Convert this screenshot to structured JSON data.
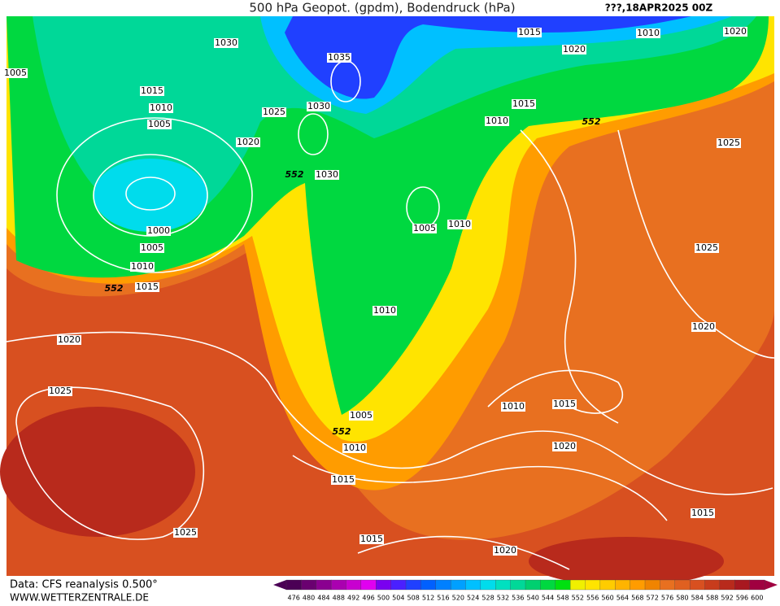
{
  "header": {
    "title": "500 hPa Geopot. (gpdm), Bodendruck (hPa)",
    "date": "???,18APR2025 00Z"
  },
  "footer": {
    "source": "Data: CFS reanalysis 0.500°",
    "site": "WWW.WETTERZENTRALE.DE"
  },
  "colorbar": {
    "values": [
      476,
      480,
      484,
      488,
      492,
      496,
      500,
      504,
      508,
      512,
      516,
      520,
      524,
      528,
      532,
      536,
      540,
      544,
      548,
      552,
      556,
      560,
      564,
      568,
      572,
      576,
      580,
      584,
      588,
      592,
      596,
      600
    ],
    "colors": [
      "#4b0055",
      "#6a0070",
      "#8a0090",
      "#aa00b0",
      "#c800d0",
      "#e000f0",
      "#7a00f0",
      "#4a20ff",
      "#2040ff",
      "#0060ff",
      "#0080ff",
      "#00a0ff",
      "#00c0ff",
      "#00dcec",
      "#00e0c0",
      "#00d898",
      "#00d070",
      "#00d840",
      "#00e010",
      "#f0f000",
      "#ffe400",
      "#ffcc00",
      "#ffb400",
      "#ff9c00",
      "#f08400",
      "#e87020",
      "#e06020",
      "#d85020",
      "#c83c1c",
      "#b82a1c",
      "#a81820",
      "#a00040"
    ]
  },
  "isobar_labels": [
    "1030",
    "1035",
    "1015",
    "1010",
    "1020",
    "1020",
    "1005",
    "1015",
    "1010",
    "1005",
    "1020",
    "1025",
    "1030",
    "1015",
    "1010",
    "552",
    "1025",
    "552",
    "1030",
    "1005",
    "1010",
    "1000",
    "1005",
    "1010",
    "552",
    "1015",
    "1025",
    "1010",
    "1020",
    "1020",
    "1025",
    "1010",
    "1015",
    "1005",
    "552",
    "1010",
    "1020",
    "1015",
    "1015",
    "1025",
    "1015",
    "1020"
  ]
}
